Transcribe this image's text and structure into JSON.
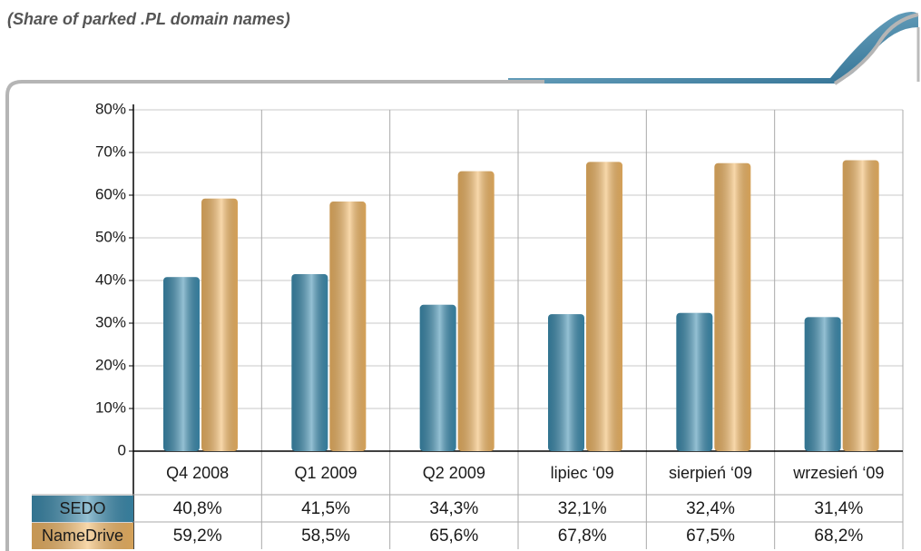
{
  "chart_data": {
    "type": "bar",
    "subtitle": "(Share of parked .PL domain names)",
    "categories": [
      "Q4 2008",
      "Q1 2009",
      "Q2 2009",
      "lipiec ‘09",
      "sierpień ‘09",
      "wrzesień ‘09"
    ],
    "series": [
      {
        "name": "SEDO",
        "color": "#3d8db0",
        "values": [
          40.8,
          41.5,
          34.3,
          32.1,
          32.4,
          31.4
        ],
        "value_labels": [
          "40,8%",
          "41,5%",
          "34,3%",
          "32,1%",
          "32,4%",
          "31,4%"
        ]
      },
      {
        "name": "NameDrive",
        "color": "#f2b866",
        "values": [
          59.2,
          58.5,
          65.6,
          67.8,
          67.5,
          68.2
        ],
        "value_labels": [
          "59,2%",
          "58,5%",
          "65,6%",
          "67,8%",
          "67,5%",
          "68,2%"
        ]
      }
    ],
    "ylim": [
      0,
      80
    ],
    "yticks": [
      0,
      {
        "value": 10,
        "label": "10%"
      },
      {
        "value": 20,
        "label": "20%"
      },
      {
        "value": 30,
        "label": "30%"
      },
      {
        "value": 40,
        "label": "40%"
      },
      {
        "value": 50,
        "label": "50%"
      },
      {
        "value": 60,
        "label": "60%"
      },
      {
        "value": 70,
        "label": "70%"
      },
      {
        "value": 80,
        "label": "80%"
      }
    ],
    "grid": true
  }
}
